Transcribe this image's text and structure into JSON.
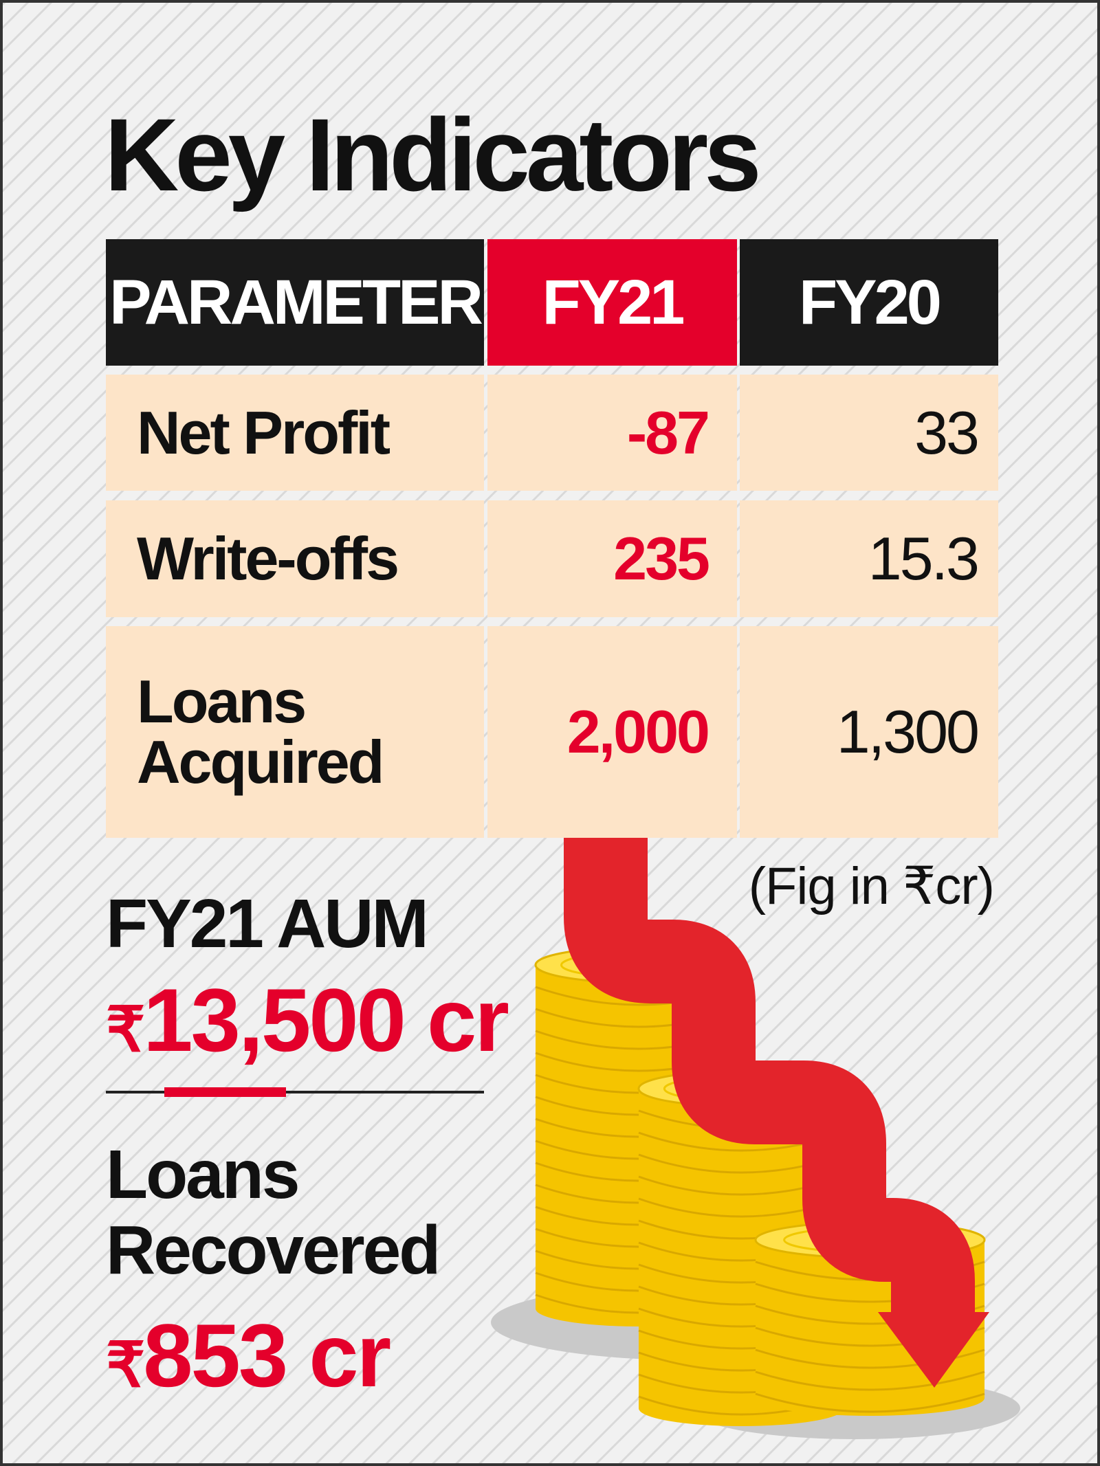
{
  "title": "Key Indicators",
  "table": {
    "header": [
      "PARAMETER",
      "FY21",
      "FY20"
    ],
    "rows": [
      [
        "Net Profit",
        "-87",
        "33"
      ],
      [
        "Write-offs",
        "235",
        "15.3"
      ],
      [
        "Loans Acquired",
        "2,000",
        "1,300"
      ]
    ]
  },
  "note": "(Fig in ₹cr)",
  "stats": [
    {
      "label": "FY21 AUM",
      "currency": "₹",
      "amount": "13,500 cr"
    },
    {
      "label": "Loans Recovered",
      "currency": "₹",
      "amount": "853 cr"
    }
  ]
}
